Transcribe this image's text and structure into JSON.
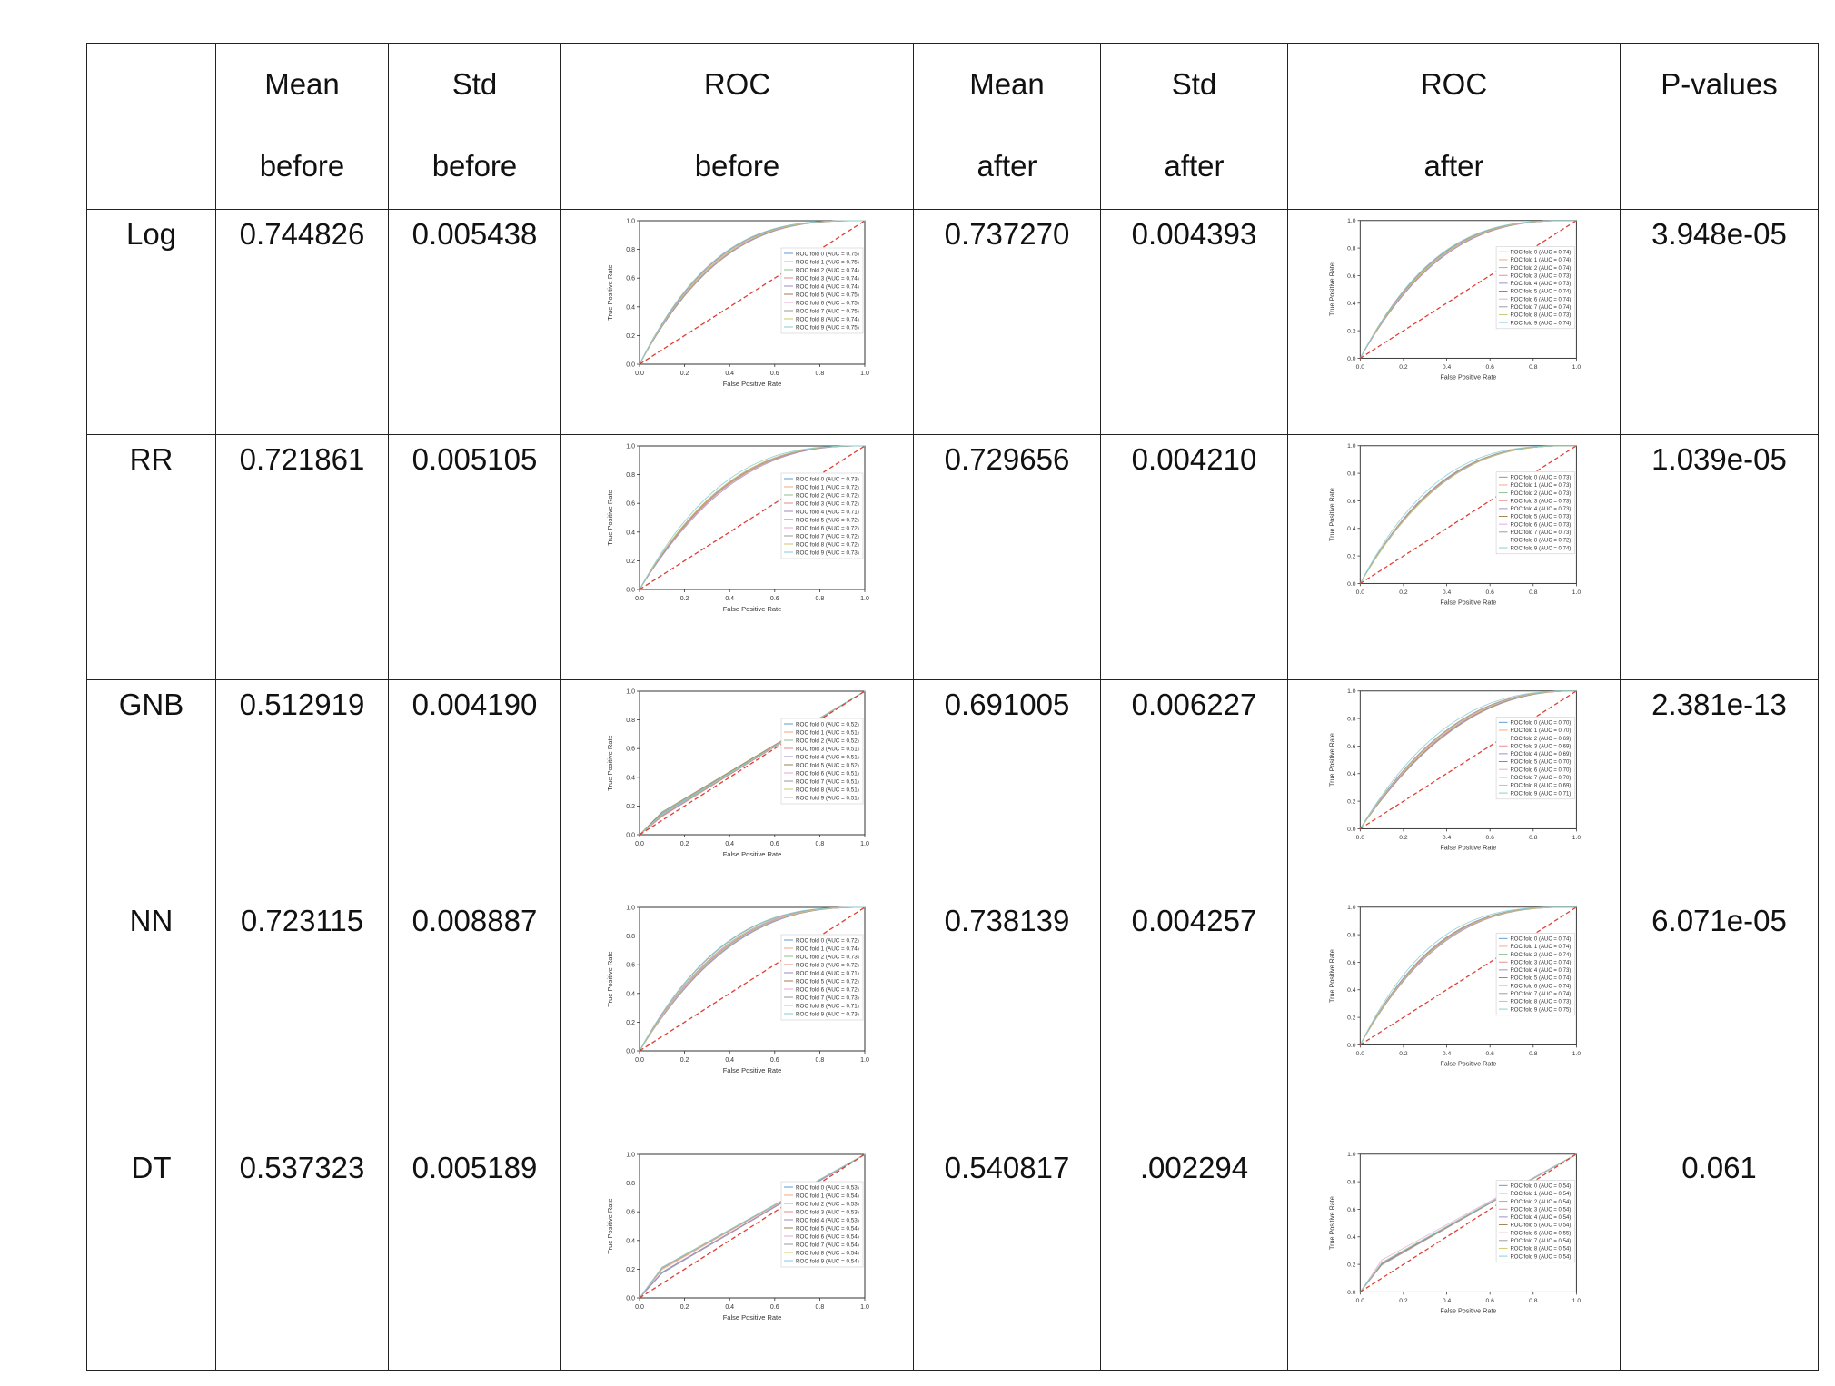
{
  "header": {
    "h1": [
      "Mean",
      "before"
    ],
    "h2": [
      "Std",
      "before"
    ],
    "h3": [
      "ROC",
      "before"
    ],
    "h4": [
      "Mean",
      "after"
    ],
    "h5": [
      "Std",
      "after"
    ],
    "h6": [
      "ROC",
      "after"
    ],
    "h7": [
      "P-values",
      ""
    ]
  },
  "axis": {
    "xlabel": "False Positive Rate",
    "ylabel": "True Positive Rate",
    "ticks": [
      "0.0",
      "0.2",
      "0.4",
      "0.6",
      "0.8",
      "1.0"
    ]
  },
  "rows": [
    {
      "model": "Log",
      "mean_before": "0.744826",
      "std_before": "0.005438",
      "mean_after": "0.737270",
      "std_after": "0.004393",
      "pvalue": "3.948e-05",
      "auc_before": [
        "0.75",
        "0.75",
        "0.74",
        "0.74",
        "0.74",
        "0.75",
        "0.75",
        "0.75",
        "0.74",
        "0.75"
      ],
      "auc_after": [
        "0.74",
        "0.74",
        "0.74",
        "0.73",
        "0.73",
        "0.74",
        "0.74",
        "0.74",
        "0.73",
        "0.74"
      ]
    },
    {
      "model": "RR",
      "mean_before": "0.721861",
      "std_before": "0.005105",
      "mean_after": "0.729656",
      "std_after": "0.004210",
      "pvalue": "1.039e-05",
      "auc_before": [
        "0.73",
        "0.72",
        "0.72",
        "0.72",
        "0.71",
        "0.72",
        "0.72",
        "0.72",
        "0.72",
        "0.73"
      ],
      "auc_after": [
        "0.73",
        "0.73",
        "0.73",
        "0.73",
        "0.73",
        "0.73",
        "0.73",
        "0.73",
        "0.72",
        "0.74"
      ]
    },
    {
      "model": "GNB",
      "mean_before": "0.512919",
      "std_before": "0.004190",
      "mean_after": "0.691005",
      "std_after": "0.006227",
      "pvalue": "2.381e-13",
      "auc_before": [
        "0.52",
        "0.51",
        "0.52",
        "0.51",
        "0.51",
        "0.52",
        "0.51",
        "0.51",
        "0.51",
        "0.51"
      ],
      "auc_after": [
        "0.70",
        "0.70",
        "0.69",
        "0.69",
        "0.69",
        "0.70",
        "0.70",
        "0.70",
        "0.69",
        "0.71"
      ]
    },
    {
      "model": "NN",
      "mean_before": "0.723115",
      "std_before": "0.008887",
      "mean_after": "0.738139",
      "std_after": "0.004257",
      "pvalue": "6.071e-05",
      "auc_before": [
        "0.72",
        "0.74",
        "0.73",
        "0.72",
        "0.71",
        "0.72",
        "0.72",
        "0.73",
        "0.71",
        "0.73"
      ],
      "auc_after": [
        "0.74",
        "0.74",
        "0.74",
        "0.74",
        "0.73",
        "0.74",
        "0.74",
        "0.74",
        "0.73",
        "0.75"
      ]
    },
    {
      "model": "DT",
      "mean_before": "0.537323",
      "std_before": "0.005189",
      "mean_after": "0.540817",
      "std_after": ".002294",
      "pvalue": "0.061",
      "auc_before": [
        "0.53",
        "0.54",
        "0.53",
        "0.53",
        "0.53",
        "0.54",
        "0.54",
        "0.54",
        "0.54",
        "0.54"
      ],
      "auc_after": [
        "0.54",
        "0.54",
        "0.54",
        "0.54",
        "0.54",
        "0.54",
        "0.55",
        "0.54",
        "0.54",
        "0.54"
      ]
    }
  ]
}
